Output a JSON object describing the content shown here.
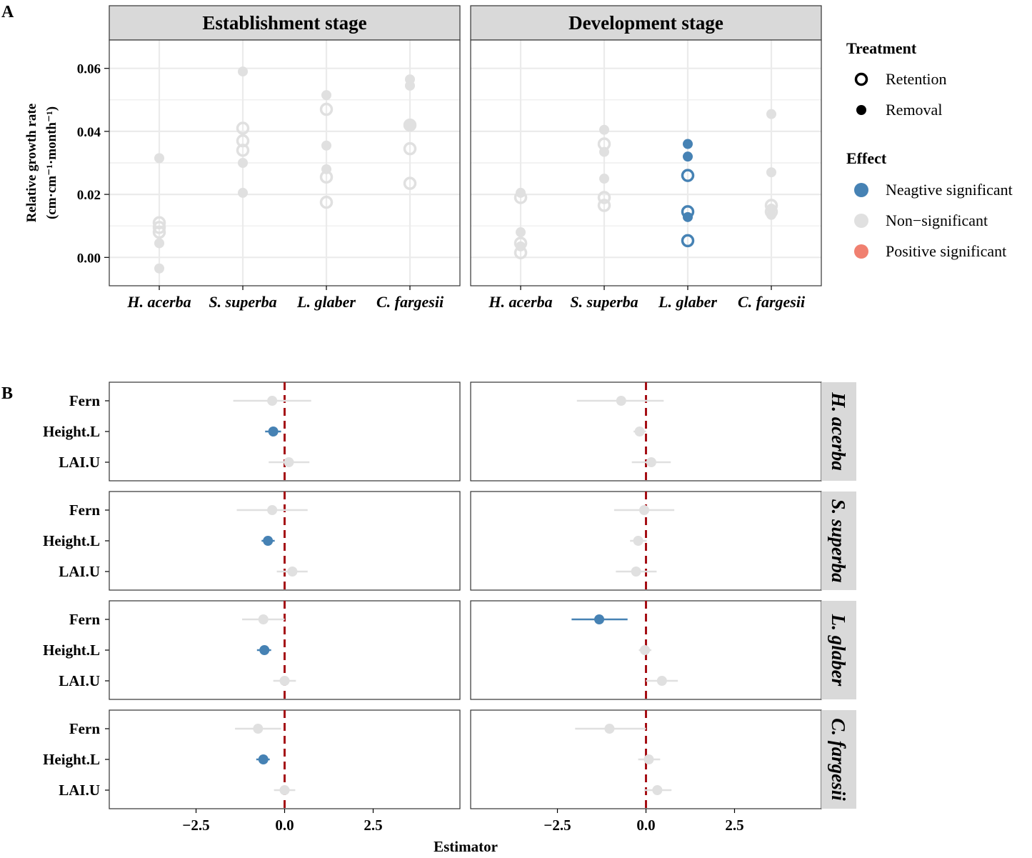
{
  "colors": {
    "negative": "#4682B4",
    "nonsig": "#E0E0E0",
    "positive": "#F08070",
    "refline": "#A50F15",
    "strip": "#D9D9D9",
    "grid": "#EBEBEB",
    "axis": "#000000"
  },
  "panel_labels": {
    "a": "A",
    "b": "B"
  },
  "legend": {
    "treatment_title": "Treatment",
    "treatment_items": [
      {
        "label": "Retention",
        "shape": "open-circle"
      },
      {
        "label": "Removal",
        "shape": "filled-circle"
      }
    ],
    "effect_title": "Effect",
    "effect_items": [
      {
        "label": "Neagtive significant",
        "key": "negative"
      },
      {
        "label": "Non−significant",
        "key": "nonsig"
      },
      {
        "label": "Positive significant",
        "key": "positive"
      }
    ]
  },
  "chart_data": [
    {
      "id": "A",
      "type": "scatter",
      "ylabel_line1": "Relative growth rate",
      "ylabel_line2": "(cm·cm⁻¹·month⁻¹)",
      "ylim": [
        -0.009,
        0.069
      ],
      "yticks": [
        0.0,
        0.02,
        0.04,
        0.06
      ],
      "ytick_labels": [
        "0.00",
        "0.02",
        "0.04",
        "0.06"
      ],
      "categories": [
        "H. acerba",
        "S. superba",
        "L. glaber",
        "C. fargesii"
      ],
      "facets": [
        {
          "title": "Establishment stage",
          "points": [
            {
              "cat": 0,
              "y": 0.0315,
              "t": "removal",
              "e": "nonsig"
            },
            {
              "cat": 0,
              "y": 0.011,
              "t": "retention",
              "e": "nonsig"
            },
            {
              "cat": 0,
              "y": 0.0095,
              "t": "retention",
              "e": "nonsig"
            },
            {
              "cat": 0,
              "y": 0.008,
              "t": "retention",
              "e": "nonsig"
            },
            {
              "cat": 0,
              "y": 0.0045,
              "t": "removal",
              "e": "nonsig"
            },
            {
              "cat": 0,
              "y": -0.0035,
              "t": "removal",
              "e": "nonsig"
            },
            {
              "cat": 1,
              "y": 0.059,
              "t": "removal",
              "e": "nonsig"
            },
            {
              "cat": 1,
              "y": 0.041,
              "t": "retention",
              "e": "nonsig"
            },
            {
              "cat": 1,
              "y": 0.037,
              "t": "retention",
              "e": "nonsig"
            },
            {
              "cat": 1,
              "y": 0.034,
              "t": "retention",
              "e": "nonsig"
            },
            {
              "cat": 1,
              "y": 0.03,
              "t": "removal",
              "e": "nonsig"
            },
            {
              "cat": 1,
              "y": 0.0205,
              "t": "removal",
              "e": "nonsig"
            },
            {
              "cat": 2,
              "y": 0.0515,
              "t": "removal",
              "e": "nonsig"
            },
            {
              "cat": 2,
              "y": 0.047,
              "t": "retention",
              "e": "nonsig"
            },
            {
              "cat": 2,
              "y": 0.0355,
              "t": "removal",
              "e": "nonsig"
            },
            {
              "cat": 2,
              "y": 0.028,
              "t": "removal",
              "e": "nonsig"
            },
            {
              "cat": 2,
              "y": 0.0255,
              "t": "retention",
              "e": "nonsig"
            },
            {
              "cat": 2,
              "y": 0.0175,
              "t": "retention",
              "e": "nonsig"
            },
            {
              "cat": 3,
              "y": 0.0565,
              "t": "removal",
              "e": "nonsig"
            },
            {
              "cat": 3,
              "y": 0.0545,
              "t": "removal",
              "e": "nonsig"
            },
            {
              "cat": 3,
              "y": 0.042,
              "t": "retention",
              "e": "nonsig"
            },
            {
              "cat": 3,
              "y": 0.042,
              "t": "removal",
              "e": "nonsig"
            },
            {
              "cat": 3,
              "y": 0.0345,
              "t": "retention",
              "e": "nonsig"
            },
            {
              "cat": 3,
              "y": 0.0235,
              "t": "retention",
              "e": "nonsig"
            }
          ]
        },
        {
          "title": "Development stage",
          "points": [
            {
              "cat": 0,
              "y": 0.0205,
              "t": "removal",
              "e": "nonsig"
            },
            {
              "cat": 0,
              "y": 0.019,
              "t": "retention",
              "e": "nonsig"
            },
            {
              "cat": 0,
              "y": 0.008,
              "t": "removal",
              "e": "nonsig"
            },
            {
              "cat": 0,
              "y": 0.0045,
              "t": "retention",
              "e": "nonsig"
            },
            {
              "cat": 0,
              "y": 0.0035,
              "t": "removal",
              "e": "nonsig"
            },
            {
              "cat": 0,
              "y": 0.0015,
              "t": "retention",
              "e": "nonsig"
            },
            {
              "cat": 1,
              "y": 0.0405,
              "t": "removal",
              "e": "nonsig"
            },
            {
              "cat": 1,
              "y": 0.036,
              "t": "retention",
              "e": "nonsig"
            },
            {
              "cat": 1,
              "y": 0.0335,
              "t": "removal",
              "e": "nonsig"
            },
            {
              "cat": 1,
              "y": 0.025,
              "t": "removal",
              "e": "nonsig"
            },
            {
              "cat": 1,
              "y": 0.019,
              "t": "retention",
              "e": "nonsig"
            },
            {
              "cat": 1,
              "y": 0.0165,
              "t": "retention",
              "e": "nonsig"
            },
            {
              "cat": 2,
              "y": 0.036,
              "t": "removal",
              "e": "negative"
            },
            {
              "cat": 2,
              "y": 0.032,
              "t": "removal",
              "e": "negative"
            },
            {
              "cat": 2,
              "y": 0.026,
              "t": "retention",
              "e": "negative"
            },
            {
              "cat": 2,
              "y": 0.0145,
              "t": "retention",
              "e": "negative"
            },
            {
              "cat": 2,
              "y": 0.0128,
              "t": "removal",
              "e": "negative"
            },
            {
              "cat": 2,
              "y": 0.0053,
              "t": "retention",
              "e": "negative"
            },
            {
              "cat": 3,
              "y": 0.0455,
              "t": "removal",
              "e": "nonsig"
            },
            {
              "cat": 3,
              "y": 0.027,
              "t": "removal",
              "e": "nonsig"
            },
            {
              "cat": 3,
              "y": 0.0165,
              "t": "retention",
              "e": "nonsig"
            },
            {
              "cat": 3,
              "y": 0.0155,
              "t": "removal",
              "e": "nonsig"
            },
            {
              "cat": 3,
              "y": 0.0145,
              "t": "retention",
              "e": "nonsig"
            },
            {
              "cat": 3,
              "y": 0.0135,
              "t": "removal",
              "e": "nonsig"
            }
          ]
        }
      ]
    },
    {
      "id": "B",
      "type": "forest",
      "xlabel": "Estimator",
      "xlim": [
        -4.95,
        4.95
      ],
      "xticks": [
        -2.5,
        0.0,
        2.5
      ],
      "xtick_labels": [
        "−2.5",
        "0.0",
        "2.5"
      ],
      "reference_x": 0,
      "predictors": [
        "Fern",
        "Height.L",
        "LAI.U"
      ],
      "rows": [
        {
          "species": "H. acerba",
          "cells": [
            [
              {
                "est": -0.35,
                "lo": -1.45,
                "hi": 0.75,
                "e": "nonsig"
              },
              {
                "est": -0.32,
                "lo": -0.55,
                "hi": -0.1,
                "e": "negative"
              },
              {
                "est": 0.12,
                "lo": -0.45,
                "hi": 0.7,
                "e": "nonsig"
              }
            ],
            [
              {
                "est": -0.7,
                "lo": -1.95,
                "hi": 0.5,
                "e": "nonsig"
              },
              {
                "est": -0.18,
                "lo": -0.35,
                "hi": 0.0,
                "e": "nonsig"
              },
              {
                "est": 0.15,
                "lo": -0.4,
                "hi": 0.7,
                "e": "nonsig"
              }
            ]
          ]
        },
        {
          "species": "S. superba",
          "cells": [
            [
              {
                "est": -0.35,
                "lo": -1.35,
                "hi": 0.65,
                "e": "nonsig"
              },
              {
                "est": -0.47,
                "lo": -0.65,
                "hi": -0.28,
                "e": "negative"
              },
              {
                "est": 0.22,
                "lo": -0.22,
                "hi": 0.65,
                "e": "nonsig"
              }
            ],
            [
              {
                "est": -0.05,
                "lo": -0.9,
                "hi": 0.8,
                "e": "nonsig"
              },
              {
                "est": -0.22,
                "lo": -0.45,
                "hi": 0.02,
                "e": "nonsig"
              },
              {
                "est": -0.28,
                "lo": -0.85,
                "hi": 0.3,
                "e": "nonsig"
              }
            ]
          ]
        },
        {
          "species": "L. glaber",
          "cells": [
            [
              {
                "est": -0.6,
                "lo": -1.2,
                "hi": 0.0,
                "e": "nonsig"
              },
              {
                "est": -0.57,
                "lo": -0.78,
                "hi": -0.38,
                "e": "negative"
              },
              {
                "est": 0.0,
                "lo": -0.32,
                "hi": 0.32,
                "e": "nonsig"
              }
            ],
            [
              {
                "est": -1.32,
                "lo": -2.1,
                "hi": -0.52,
                "e": "negative"
              },
              {
                "est": -0.03,
                "lo": -0.2,
                "hi": 0.15,
                "e": "nonsig"
              },
              {
                "est": 0.45,
                "lo": 0.0,
                "hi": 0.9,
                "e": "nonsig"
              }
            ]
          ]
        },
        {
          "species": "C. fargesii",
          "cells": [
            [
              {
                "est": -0.75,
                "lo": -1.4,
                "hi": -0.1,
                "e": "nonsig"
              },
              {
                "est": -0.6,
                "lo": -0.8,
                "hi": -0.42,
                "e": "negative"
              },
              {
                "est": 0.0,
                "lo": -0.3,
                "hi": 0.3,
                "e": "nonsig"
              }
            ],
            [
              {
                "est": -1.03,
                "lo": -2.0,
                "hi": 0.0,
                "e": "nonsig"
              },
              {
                "est": 0.08,
                "lo": -0.22,
                "hi": 0.4,
                "e": "nonsig"
              },
              {
                "est": 0.32,
                "lo": -0.05,
                "hi": 0.72,
                "e": "nonsig"
              }
            ]
          ]
        }
      ]
    }
  ]
}
